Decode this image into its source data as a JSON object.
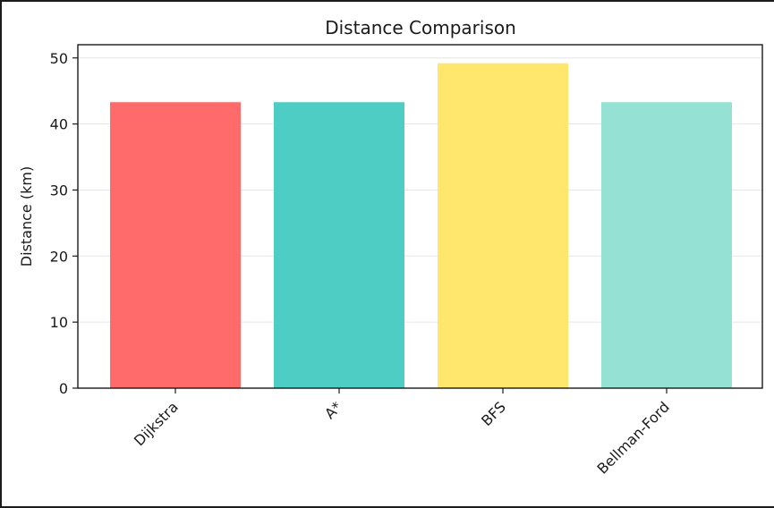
{
  "chart_data": {
    "type": "bar",
    "title": "Distance Comparison",
    "xlabel": "",
    "ylabel": "Distance (km)",
    "categories": [
      "Dijkstra",
      "A*",
      "BFS",
      "Bellman-Ford"
    ],
    "values": [
      43.3,
      43.3,
      49.2,
      43.3
    ],
    "colors": [
      "#ff6b6b",
      "#4ecdc4",
      "#ffe66d",
      "#95e1d3"
    ],
    "ylim": [
      0,
      52
    ],
    "yticks": [
      0,
      10,
      20,
      30,
      40,
      50
    ],
    "grid": "y",
    "legend": "none"
  }
}
